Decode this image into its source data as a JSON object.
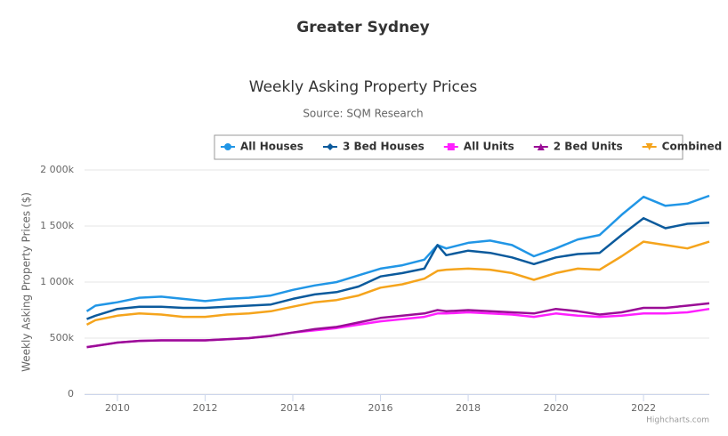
{
  "page_title": "Greater Sydney",
  "chart_data": {
    "type": "line",
    "title": "Weekly Asking Property Prices",
    "subtitle": "Source: SQM Research",
    "y_label": "Weekly Asking Property Prices ($)",
    "credit": "Highcharts.com",
    "x": [
      2009.3,
      2009.5,
      2010,
      2010.5,
      2011,
      2011.5,
      2012,
      2012.5,
      2013,
      2013.5,
      2014,
      2014.5,
      2015,
      2015.5,
      2016,
      2016.5,
      2017,
      2017.3,
      2017.5,
      2018,
      2018.5,
      2019,
      2019.5,
      2020,
      2020.5,
      2021,
      2021.5,
      2022,
      2022.5,
      2023,
      2023.5
    ],
    "series": [
      {
        "name": "All Houses",
        "color": "#2196e6",
        "marker": "circle",
        "values": [
          740000,
          790000,
          820000,
          860000,
          870000,
          850000,
          830000,
          850000,
          860000,
          880000,
          930000,
          970000,
          1000000,
          1060000,
          1120000,
          1150000,
          1200000,
          1330000,
          1300000,
          1350000,
          1370000,
          1330000,
          1230000,
          1300000,
          1380000,
          1420000,
          1600000,
          1760000,
          1680000,
          1700000,
          1770000
        ]
      },
      {
        "name": "3 Bed Houses",
        "color": "#0b5a9c",
        "marker": "diamond",
        "values": [
          670000,
          700000,
          760000,
          780000,
          780000,
          770000,
          770000,
          780000,
          790000,
          800000,
          850000,
          890000,
          910000,
          960000,
          1050000,
          1080000,
          1120000,
          1330000,
          1240000,
          1280000,
          1260000,
          1220000,
          1160000,
          1220000,
          1250000,
          1260000,
          1420000,
          1570000,
          1480000,
          1520000,
          1530000
        ]
      },
      {
        "name": "All Units",
        "color": "#ff1fff",
        "marker": "square",
        "values": [
          420000,
          430000,
          460000,
          475000,
          480000,
          480000,
          480000,
          490000,
          500000,
          520000,
          550000,
          570000,
          590000,
          620000,
          650000,
          670000,
          690000,
          720000,
          720000,
          730000,
          720000,
          710000,
          690000,
          720000,
          700000,
          690000,
          700000,
          720000,
          720000,
          730000,
          760000
        ]
      },
      {
        "name": "2 Bed Units",
        "color": "#9a0d96",
        "marker": "triangle",
        "values": [
          420000,
          430000,
          460000,
          475000,
          480000,
          480000,
          480000,
          490000,
          500000,
          520000,
          550000,
          580000,
          600000,
          640000,
          680000,
          700000,
          720000,
          750000,
          740000,
          750000,
          740000,
          730000,
          720000,
          760000,
          740000,
          710000,
          730000,
          770000,
          770000,
          790000,
          810000
        ]
      },
      {
        "name": "Combined",
        "color": "#f5a41c",
        "marker": "triangle-down",
        "values": [
          620000,
          660000,
          700000,
          720000,
          710000,
          690000,
          690000,
          710000,
          720000,
          740000,
          780000,
          820000,
          840000,
          880000,
          950000,
          980000,
          1030000,
          1100000,
          1110000,
          1120000,
          1110000,
          1080000,
          1020000,
          1080000,
          1120000,
          1110000,
          1230000,
          1360000,
          1330000,
          1300000,
          1360000
        ]
      }
    ],
    "xlim": [
      2009.25,
      2023.5
    ],
    "xticks": [
      2010,
      2012,
      2014,
      2016,
      2018,
      2020,
      2022
    ],
    "ylim": [
      0,
      2000000
    ],
    "yticks": [
      {
        "value": 0,
        "label": "0"
      },
      {
        "value": 500000,
        "label": "500k"
      },
      {
        "value": 1000000,
        "label": "1 000k"
      },
      {
        "value": 1500000,
        "label": "1 500k"
      },
      {
        "value": 2000000,
        "label": "2 000k"
      }
    ],
    "grid": true,
    "legend": "top"
  }
}
